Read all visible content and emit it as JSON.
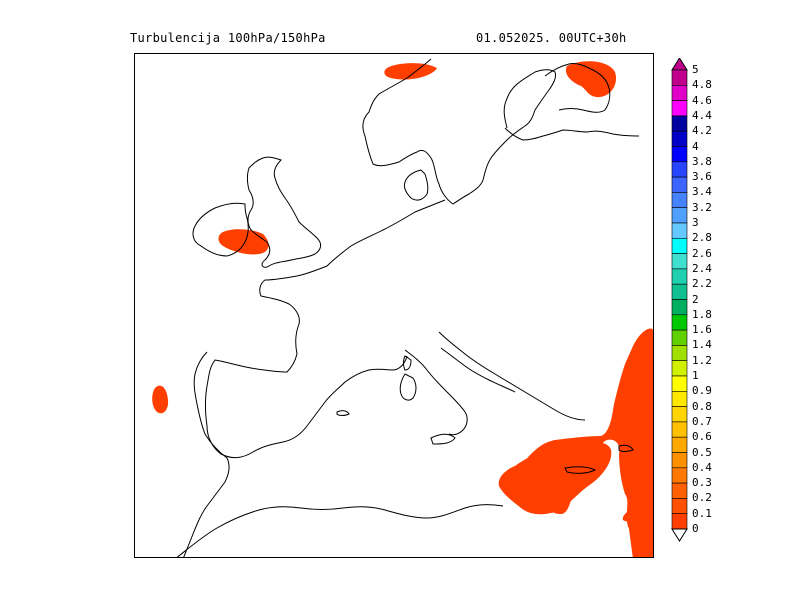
{
  "header": {
    "title_left": "Turbulencija 100hPa/150hPa",
    "title_right": "01.052025.   00UTC+30h"
  },
  "map": {
    "region": "Europe",
    "turbulence_fill_color": "#ff3f00",
    "coastline_color": "#000000"
  },
  "legend": {
    "labels": [
      "5",
      "4.8",
      "4.6",
      "4.4",
      "4.2",
      "4",
      "3.8",
      "3.6",
      "3.4",
      "3.2",
      "3",
      "2.8",
      "2.6",
      "2.4",
      "2.2",
      "2",
      "1.8",
      "1.6",
      "1.4",
      "1.2",
      "1",
      "0.9",
      "0.8",
      "0.7",
      "0.6",
      "0.5",
      "0.4",
      "0.3",
      "0.2",
      "0.1",
      "0"
    ],
    "colors": [
      "#c0008c",
      "#e000c8",
      "#ff00ff",
      "#0000a0",
      "#0000c8",
      "#0000ff",
      "#2846ff",
      "#3c64ff",
      "#4682ff",
      "#50a0ff",
      "#64c8ff",
      "#00ffff",
      "#40e0d0",
      "#20d0b0",
      "#10c090",
      "#00b060",
      "#00c800",
      "#60d000",
      "#a0e000",
      "#d0f000",
      "#ffff00",
      "#ffe800",
      "#ffd400",
      "#ffc000",
      "#ffa800",
      "#ff9000",
      "#ff7800",
      "#ff6000",
      "#ff5000",
      "#ff3f00"
    ]
  }
}
